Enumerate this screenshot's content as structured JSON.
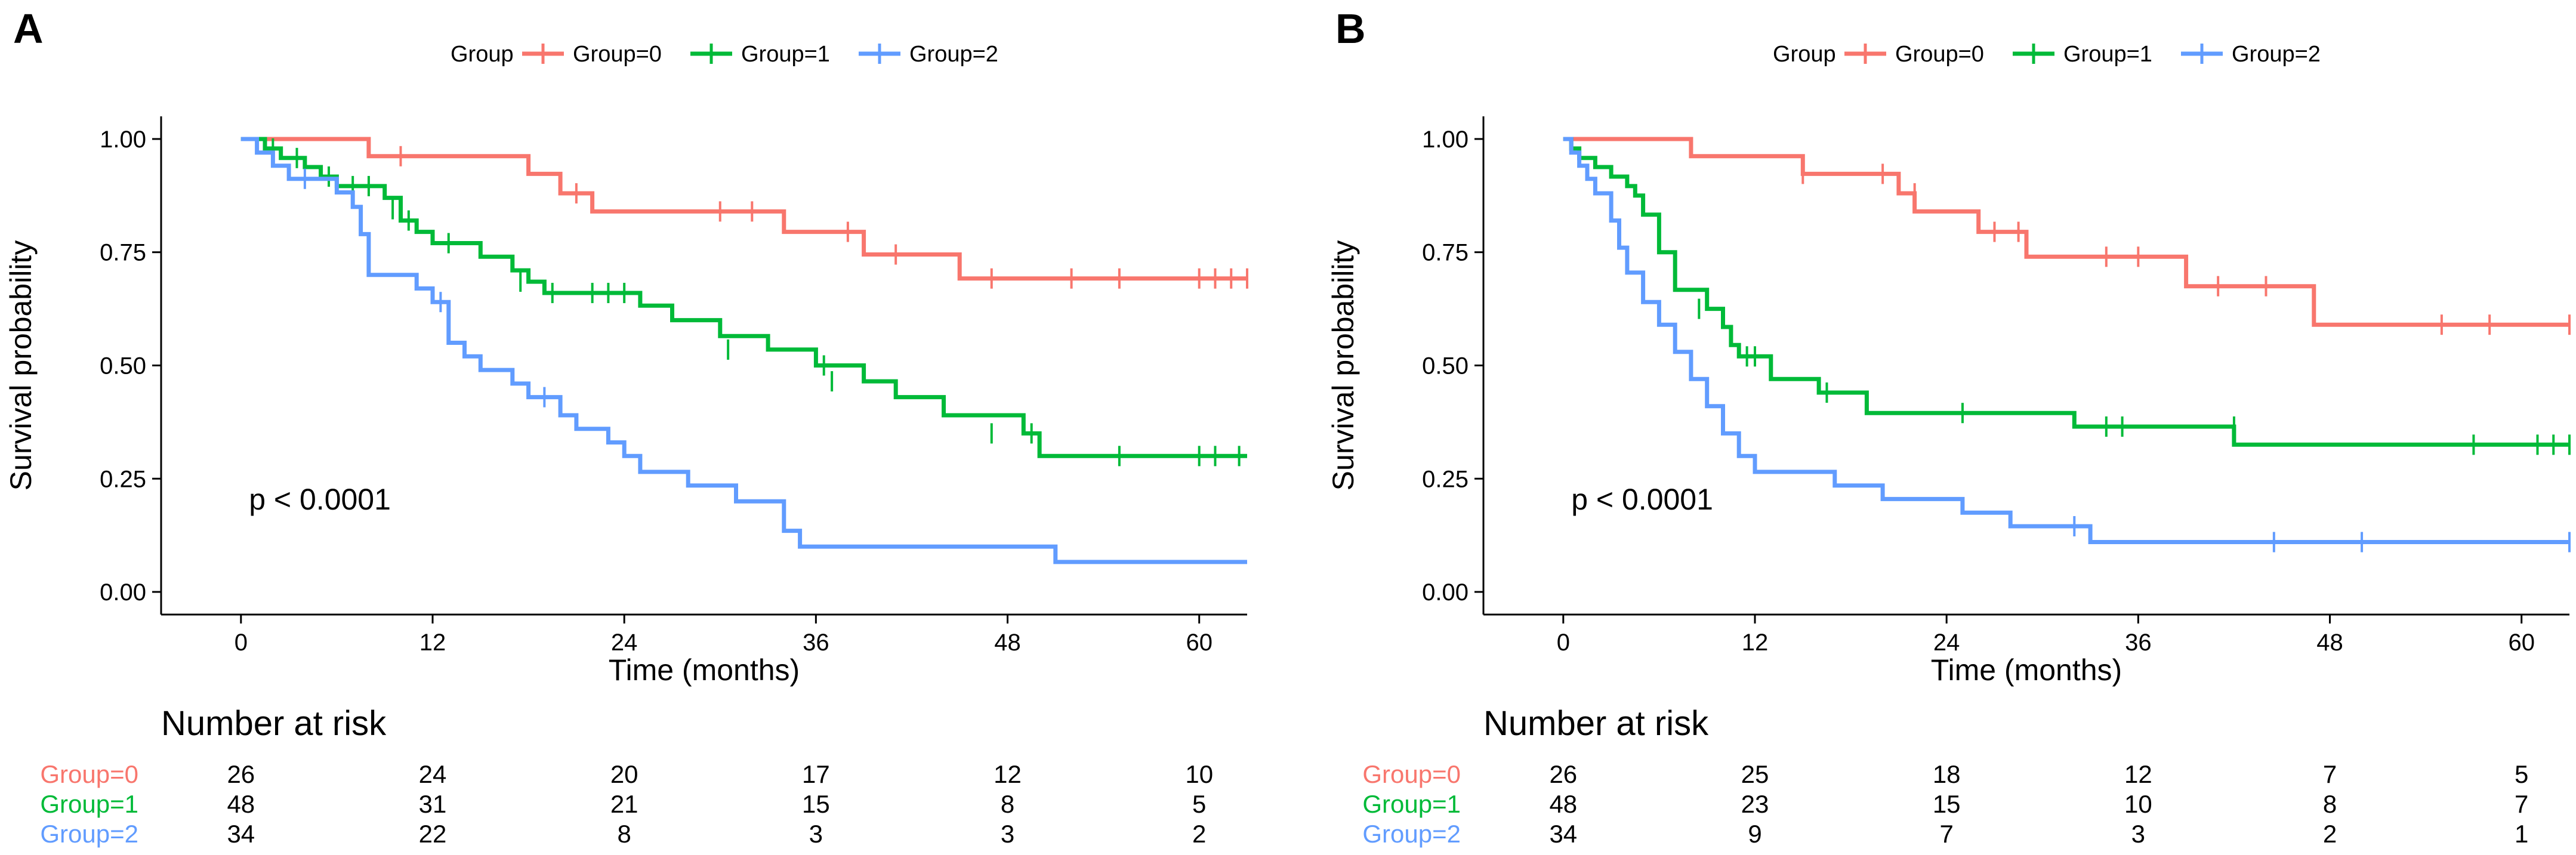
{
  "chart_data": [
    {
      "type": "line",
      "subtype": "kaplan-meier",
      "panel_label": "A",
      "legend_title": "Group",
      "legend_position": "top",
      "xlabel": "Time (months)",
      "ylabel": "Survival probability",
      "xlim": [
        -5,
        63
      ],
      "ylim": [
        -0.05,
        1.05
      ],
      "x_ticks": [
        0,
        12,
        24,
        36,
        48,
        60
      ],
      "x_tick_labels": [
        "0",
        "12",
        "24",
        "36",
        "48",
        "60"
      ],
      "y_ticks": [
        0,
        0.25,
        0.5,
        0.75,
        1
      ],
      "y_tick_labels": [
        "0.00",
        "0.25",
        "0.50",
        "0.75",
        "1.00"
      ],
      "annotation": "p < 0.0001",
      "grid": false,
      "series": [
        {
          "name": "Group=0",
          "color": "#F8766D",
          "steps": [
            [
              0,
              1
            ],
            [
              8,
              0.962
            ],
            [
              18,
              0.923
            ],
            [
              20,
              0.88
            ],
            [
              22,
              0.84
            ],
            [
              34,
              0.795
            ],
            [
              39,
              0.745
            ],
            [
              45,
              0.692
            ],
            [
              63,
              0.692
            ]
          ],
          "censors": [
            [
              10,
              0.962
            ],
            [
              21,
              0.88
            ],
            [
              30,
              0.84
            ],
            [
              32,
              0.84
            ],
            [
              38,
              0.795
            ],
            [
              41,
              0.745
            ],
            [
              47,
              0.692
            ],
            [
              52,
              0.692
            ],
            [
              55,
              0.692
            ],
            [
              60,
              0.692
            ],
            [
              61,
              0.692
            ],
            [
              62,
              0.692
            ],
            [
              63,
              0.692
            ]
          ]
        },
        {
          "name": "Group=1",
          "color": "#00BA38",
          "steps": [
            [
              0,
              1
            ],
            [
              1.5,
              0.979
            ],
            [
              2.5,
              0.958
            ],
            [
              4,
              0.938
            ],
            [
              5,
              0.917
            ],
            [
              6,
              0.896
            ],
            [
              9,
              0.87
            ],
            [
              10,
              0.82
            ],
            [
              11,
              0.795
            ],
            [
              12,
              0.77
            ],
            [
              15,
              0.74
            ],
            [
              17,
              0.71
            ],
            [
              18,
              0.685
            ],
            [
              19,
              0.66
            ],
            [
              25,
              0.632
            ],
            [
              27,
              0.6
            ],
            [
              30,
              0.565
            ],
            [
              33,
              0.535
            ],
            [
              36,
              0.5
            ],
            [
              39,
              0.465
            ],
            [
              41,
              0.43
            ],
            [
              44,
              0.39
            ],
            [
              49,
              0.35
            ],
            [
              50,
              0.3
            ],
            [
              63,
              0.3
            ]
          ],
          "censors": [
            [
              2,
              0.979
            ],
            [
              3.5,
              0.958
            ],
            [
              5.5,
              0.917
            ],
            [
              7,
              0.896
            ],
            [
              8,
              0.896
            ],
            [
              9.5,
              0.845
            ],
            [
              10.5,
              0.82
            ],
            [
              13,
              0.77
            ],
            [
              17.5,
              0.685
            ],
            [
              19.5,
              0.66
            ],
            [
              22,
              0.66
            ],
            [
              23,
              0.66
            ],
            [
              24,
              0.66
            ],
            [
              30.5,
              0.535
            ],
            [
              36.5,
              0.5
            ],
            [
              37,
              0.465
            ],
            [
              47,
              0.35
            ],
            [
              49.5,
              0.35
            ],
            [
              55,
              0.3
            ],
            [
              60,
              0.3
            ],
            [
              61,
              0.3
            ],
            [
              62.5,
              0.3
            ]
          ]
        },
        {
          "name": "Group=2",
          "color": "#619CFF",
          "steps": [
            [
              0,
              1
            ],
            [
              1,
              0.97
            ],
            [
              2,
              0.941
            ],
            [
              3,
              0.912
            ],
            [
              6,
              0.882
            ],
            [
              7,
              0.85
            ],
            [
              7.5,
              0.79
            ],
            [
              8,
              0.7
            ],
            [
              11,
              0.67
            ],
            [
              12,
              0.64
            ],
            [
              13,
              0.55
            ],
            [
              14,
              0.52
            ],
            [
              15,
              0.49
            ],
            [
              17,
              0.46
            ],
            [
              18,
              0.43
            ],
            [
              20,
              0.39
            ],
            [
              21,
              0.36
            ],
            [
              23,
              0.33
            ],
            [
              24,
              0.3
            ],
            [
              25,
              0.265
            ],
            [
              28,
              0.235
            ],
            [
              31,
              0.2
            ],
            [
              34,
              0.135
            ],
            [
              35,
              0.1
            ],
            [
              51,
              0.066
            ],
            [
              63,
              0.066
            ]
          ],
          "censors": [
            [
              4,
              0.912
            ],
            [
              12.5,
              0.64
            ],
            [
              19,
              0.43
            ]
          ]
        }
      ],
      "risk_table": {
        "title": "Number at risk",
        "times": [
          0,
          12,
          24,
          36,
          48,
          60
        ],
        "rows": [
          {
            "label": "Group=0",
            "color": "#F8766D",
            "values": [
              "26",
              "24",
              "20",
              "17",
              "12",
              "10"
            ]
          },
          {
            "label": "Group=1",
            "color": "#00BA38",
            "values": [
              "48",
              "31",
              "21",
              "15",
              "8",
              "5"
            ]
          },
          {
            "label": "Group=2",
            "color": "#619CFF",
            "values": [
              "34",
              "22",
              "8",
              "3",
              "3",
              "2"
            ]
          }
        ]
      }
    },
    {
      "type": "line",
      "subtype": "kaplan-meier",
      "panel_label": "B",
      "legend_title": "Group",
      "legend_position": "top",
      "xlabel": "Time (months)",
      "ylabel": "Survival probability",
      "xlim": [
        -5,
        63
      ],
      "ylim": [
        -0.05,
        1.05
      ],
      "x_ticks": [
        0,
        12,
        24,
        36,
        48,
        60
      ],
      "x_tick_labels": [
        "0",
        "12",
        "24",
        "36",
        "48",
        "60"
      ],
      "y_ticks": [
        0,
        0.25,
        0.5,
        0.75,
        1
      ],
      "y_tick_labels": [
        "0.00",
        "0.25",
        "0.50",
        "0.75",
        "1.00"
      ],
      "annotation": "p < 0.0001",
      "grid": false,
      "series": [
        {
          "name": "Group=0",
          "color": "#F8766D",
          "steps": [
            [
              0,
              1
            ],
            [
              8,
              0.962
            ],
            [
              15,
              0.923
            ],
            [
              21,
              0.88
            ],
            [
              22,
              0.84
            ],
            [
              26,
              0.795
            ],
            [
              29,
              0.74
            ],
            [
              39,
              0.675
            ],
            [
              47,
              0.59
            ],
            [
              63,
              0.59
            ]
          ],
          "censors": [
            [
              15,
              0.923
            ],
            [
              20,
              0.923
            ],
            [
              22,
              0.88
            ],
            [
              27,
              0.795
            ],
            [
              28.5,
              0.795
            ],
            [
              34,
              0.74
            ],
            [
              36,
              0.74
            ],
            [
              41,
              0.675
            ],
            [
              44,
              0.675
            ],
            [
              55,
              0.59
            ],
            [
              58,
              0.59
            ],
            [
              63,
              0.59
            ]
          ]
        },
        {
          "name": "Group=1",
          "color": "#00BA38",
          "steps": [
            [
              0,
              1
            ],
            [
              0.5,
              0.979
            ],
            [
              1,
              0.958
            ],
            [
              2,
              0.938
            ],
            [
              3,
              0.917
            ],
            [
              4,
              0.896
            ],
            [
              4.5,
              0.875
            ],
            [
              5,
              0.833
            ],
            [
              6,
              0.75
            ],
            [
              7,
              0.667
            ],
            [
              9,
              0.625
            ],
            [
              10,
              0.585
            ],
            [
              10.5,
              0.545
            ],
            [
              11,
              0.52
            ],
            [
              13,
              0.47
            ],
            [
              16,
              0.44
            ],
            [
              19,
              0.395
            ],
            [
              32,
              0.365
            ],
            [
              42,
              0.325
            ],
            [
              63,
              0.325
            ]
          ],
          "censors": [
            [
              8.5,
              0.625
            ],
            [
              11.5,
              0.52
            ],
            [
              12,
              0.52
            ],
            [
              16.5,
              0.44
            ],
            [
              25,
              0.395
            ],
            [
              34,
              0.365
            ],
            [
              35,
              0.365
            ],
            [
              42,
              0.365
            ],
            [
              57,
              0.325
            ],
            [
              61,
              0.325
            ],
            [
              62,
              0.325
            ],
            [
              63,
              0.325
            ]
          ]
        },
        {
          "name": "Group=2",
          "color": "#619CFF",
          "steps": [
            [
              0,
              1
            ],
            [
              0.5,
              0.97
            ],
            [
              1,
              0.941
            ],
            [
              1.5,
              0.912
            ],
            [
              2,
              0.88
            ],
            [
              3,
              0.82
            ],
            [
              3.5,
              0.76
            ],
            [
              4,
              0.705
            ],
            [
              5,
              0.64
            ],
            [
              6,
              0.59
            ],
            [
              7,
              0.53
            ],
            [
              8,
              0.47
            ],
            [
              9,
              0.41
            ],
            [
              10,
              0.35
            ],
            [
              11,
              0.3
            ],
            [
              12,
              0.265
            ],
            [
              17,
              0.235
            ],
            [
              20,
              0.205
            ],
            [
              25,
              0.175
            ],
            [
              28,
              0.145
            ],
            [
              33,
              0.11
            ],
            [
              63,
              0.11
            ]
          ],
          "censors": [
            [
              32,
              0.145
            ],
            [
              44.5,
              0.11
            ],
            [
              50,
              0.11
            ],
            [
              63,
              0.11
            ]
          ]
        }
      ],
      "risk_table": {
        "title": "Number at risk",
        "times": [
          0,
          12,
          24,
          36,
          48,
          60
        ],
        "rows": [
          {
            "label": "Group=0",
            "color": "#F8766D",
            "values": [
              "26",
              "25",
              "18",
              "12",
              "7",
              "5"
            ]
          },
          {
            "label": "Group=1",
            "color": "#00BA38",
            "values": [
              "48",
              "23",
              "15",
              "10",
              "8",
              "7"
            ]
          },
          {
            "label": "Group=2",
            "color": "#619CFF",
            "values": [
              "34",
              "9",
              "7",
              "3",
              "2",
              "1"
            ]
          }
        ]
      }
    }
  ]
}
